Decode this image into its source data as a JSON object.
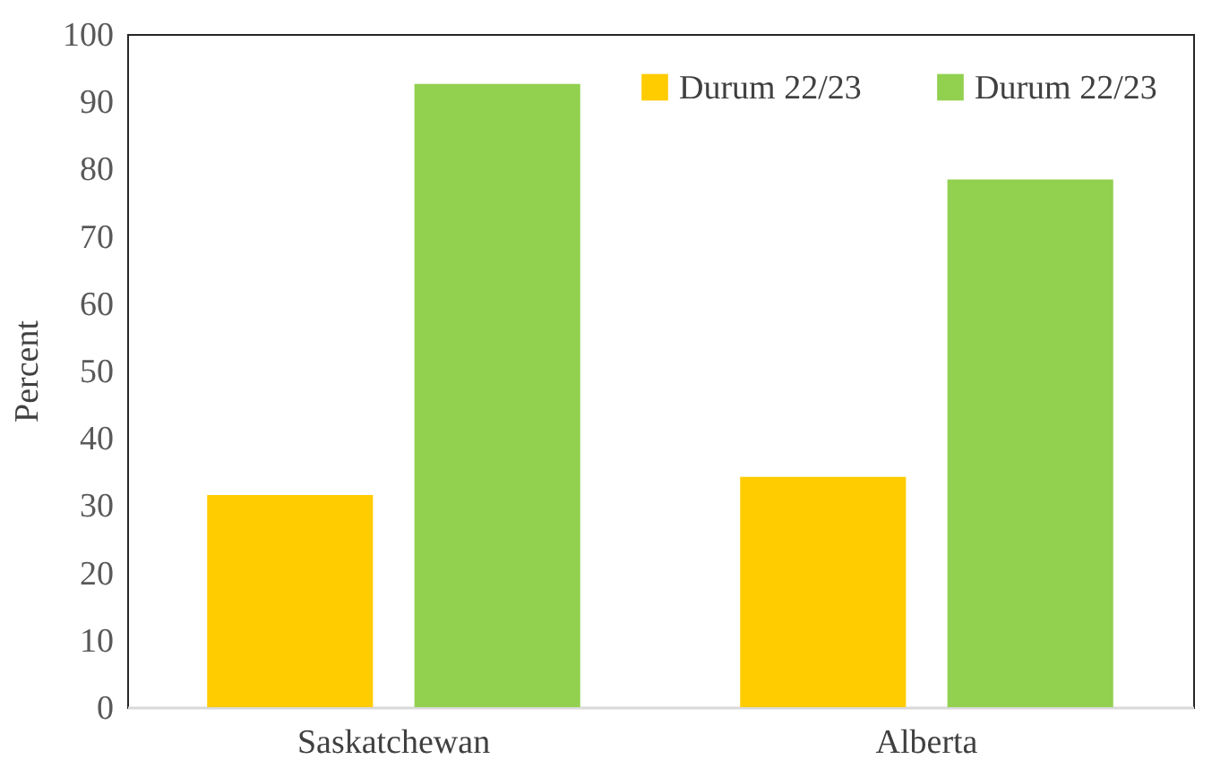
{
  "chart_data": {
    "type": "bar",
    "ylabel": "Percent",
    "categories": [
      "Saskatchewan",
      "Alberta"
    ],
    "series": [
      {
        "name": "Durum 22/23",
        "color": "#ffcc00",
        "values": [
          31.5,
          34.2
        ]
      },
      {
        "name": "Durum 22/23",
        "color": "#92d050",
        "values": [
          92.6,
          78.4
        ]
      }
    ],
    "ylim": [
      0,
      100
    ],
    "yticks": [
      0,
      10,
      20,
      30,
      40,
      50,
      60,
      70,
      80,
      90,
      100
    ],
    "grid": false,
    "legend": "top right"
  }
}
